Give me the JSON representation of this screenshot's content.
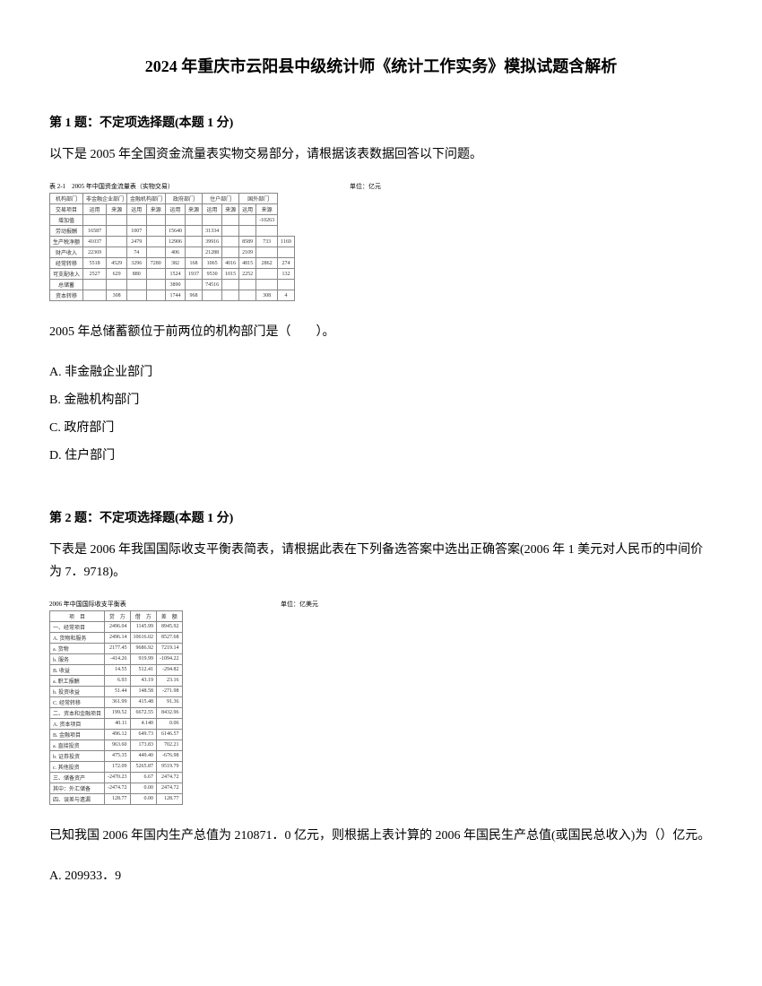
{
  "title": "2024 年重庆市云阳县中级统计师《统计工作实务》模拟试题含解析",
  "q1": {
    "header": "第 1 题：不定项选择题(本题 1 分)",
    "intro": "以下是 2005 年全国资金流量表实物交易部分，请根据该表数据回答以下问题。",
    "stem": "2005 年总储蓄额位于前两位的机构部门是（　　）。",
    "optA": "A. 非金融企业部门",
    "optB": "B. 金融机构部门",
    "optC": "C. 政府部门",
    "optD": "D. 住户部门",
    "table": {
      "caption": "表 2-1　2005 年中国资金流量表（实物交易）",
      "unit": "单位：亿元",
      "headers1": [
        "机构部门",
        "非金融企业部门",
        "金融机构部门",
        "政府部门",
        "住户部门",
        "国外部门"
      ],
      "headers2": [
        "交易项目",
        "运用",
        "来源",
        "运用",
        "来源",
        "运用",
        "来源",
        "运用",
        "来源",
        "运用",
        "来源"
      ],
      "rows": [
        [
          "增加值",
          "",
          "",
          "",
          "",
          "",
          "",
          "",
          "",
          "",
          "-10263"
        ],
        [
          "劳动报酬",
          "16587",
          "",
          "1007",
          "",
          "15640",
          "",
          "31334",
          "",
          "",
          ""
        ],
        [
          "生产税净额",
          "41037",
          "",
          "2479",
          "",
          "12906",
          "",
          "39916",
          "",
          "8589",
          "733",
          "1169"
        ],
        [
          "财产收入",
          "22369",
          "",
          "74",
          "",
          "406",
          "",
          "21288",
          "",
          "2109",
          "",
          ""
        ],
        [
          "经常转移",
          "5518",
          "4529",
          "3296",
          "7280",
          "382",
          "168",
          "1065",
          "4016",
          "4815",
          "2862",
          "274"
        ],
        [
          "可支配收入",
          "2527",
          "629",
          "880",
          "",
          "1524",
          "1937",
          "9530",
          "1015",
          "2252",
          "",
          "132"
        ],
        [
          "总储蓄",
          "",
          "",
          "",
          "",
          "3890",
          "",
          "74516",
          "",
          "",
          "",
          ""
        ],
        [
          "资本转移",
          "",
          "308",
          "",
          "",
          "1744",
          "968",
          "",
          "",
          "",
          "308",
          "4"
        ]
      ]
    }
  },
  "q2": {
    "header": "第 2 题：不定项选择题(本题 1 分)",
    "intro": "下表是 2006 年我国国际收支平衡表简表，请根据此表在下列备选答案中选出正确答案(2006 年 1 美元对人民币的中间价为 7．9718)。",
    "stem": "已知我国 2006 年国内生产总值为 210871．0 亿元，则根据上表计算的 2006 年国民生产总值(或国民总收入)为（）亿元。",
    "optA": "A. 209933．9",
    "table": {
      "caption": "2006 年中国国际收支平衡表",
      "unit": "单位：亿美元",
      "headers": [
        "项　目",
        "贷　方",
        "借　方",
        "差　额"
      ],
      "rows": [
        [
          "一、经常项目",
          "2496.04",
          "1145.99",
          "8945.92"
        ],
        [
          "A. 货物和服务",
          "2496.14",
          "10616.02",
          "8527.68"
        ],
        [
          "a. 货物",
          "2177.45",
          "9686.92",
          "7219.14"
        ],
        [
          "b. 服务",
          "-414.26",
          "919.99",
          "-1094.22"
        ],
        [
          "B. 收益",
          "14.55",
          "512.41",
          "-294.82"
        ],
        [
          "a. 职工报酬",
          "6.93",
          "43.19",
          "23.16"
        ],
        [
          "b. 投资收益",
          "51.44",
          "148.58",
          "-271.98"
        ],
        [
          "C. 经常转移",
          "361.99",
          "415.48",
          "91.36"
        ],
        [
          "二、资本和金融项目",
          "199.52",
          "6672.55",
          "8432.96"
        ],
        [
          "A. 资本项目",
          "40.11",
          "4.140",
          "0.06"
        ],
        [
          "B. 金融项目",
          "496.12",
          "649.73",
          "6146.57"
        ],
        [
          "a. 直接投资",
          "963.60",
          "173.83",
          "702.21"
        ],
        [
          "b. 证券投资",
          "475.35",
          "449.40",
          "-676.98"
        ],
        [
          "c. 其他投资",
          "172.09",
          "5265.87",
          "9519.79"
        ],
        [
          "三、储备资产",
          "-2470.23",
          "6.67",
          "2474.72"
        ],
        [
          "其中：外汇储备",
          "-2474.72",
          "0.00",
          "2474.72"
        ],
        [
          "四、误差与遗漏",
          "128.77",
          "0.00",
          "128.77"
        ]
      ]
    }
  }
}
